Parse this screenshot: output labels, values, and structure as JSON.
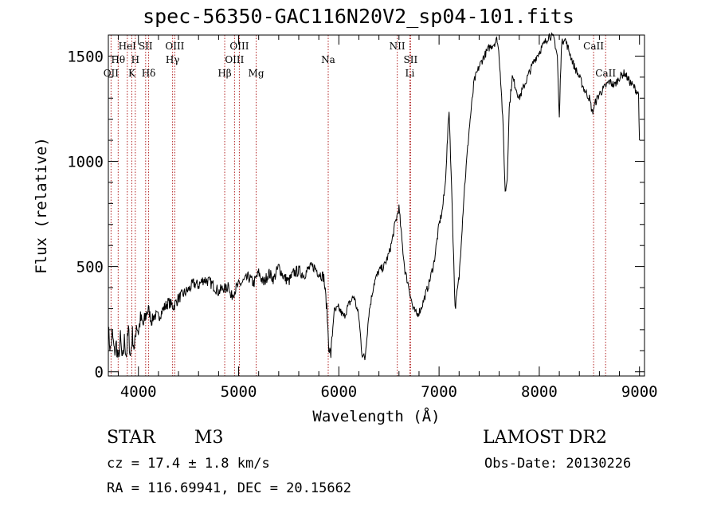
{
  "title": "spec-56350-GAC116N20V2_sp04-101.fits",
  "info": {
    "class_label": "STAR",
    "subclass": "M3",
    "cz": "cz = 17.4 ± 1.8 km/s",
    "radec": "RA = 116.69941, DEC =  20.15662",
    "survey": "LAMOST DR2",
    "obs_date": "Obs-Date: 20130226"
  },
  "chart_data": {
    "type": "line",
    "xlabel": "Wavelength (Å)",
    "ylabel": "Flux (relative)",
    "xlim": [
      3700,
      9050
    ],
    "ylim": [
      -20,
      1600
    ],
    "xticks": [
      4000,
      5000,
      6000,
      7000,
      8000,
      9000
    ],
    "yticks": [
      0,
      500,
      1000,
      1500
    ],
    "line_color": "#000000",
    "marker_color": "#b22222",
    "lines": [
      {
        "name": "OII",
        "x": 3727,
        "row": 3
      },
      {
        "name": "Hθ",
        "x": 3798,
        "row": 2
      },
      {
        "name": "HeI",
        "x": 3889,
        "row": 1
      },
      {
        "name": "K",
        "x": 3934,
        "row": 3
      },
      {
        "name": "H",
        "x": 3969,
        "row": 2
      },
      {
        "name": "SII",
        "x": 4072,
        "row": 1
      },
      {
        "name": "Hδ",
        "x": 4102,
        "row": 3
      },
      {
        "name": "OIII",
        "x": 4363,
        "row": 1
      },
      {
        "name": "Hγ",
        "x": 4341,
        "row": 2
      },
      {
        "name": "Hβ",
        "x": 4861,
        "row": 3
      },
      {
        "name": "OIII",
        "x": 4959,
        "row": 2
      },
      {
        "name": "OIII",
        "x": 5007,
        "row": 1
      },
      {
        "name": "Mg",
        "x": 5175,
        "row": 3
      },
      {
        "name": "Na",
        "x": 5894,
        "row": 2
      },
      {
        "name": "NII",
        "x": 6583,
        "row": 1
      },
      {
        "name": "SII",
        "x": 6716,
        "row": 2
      },
      {
        "name": "Li",
        "x": 6708,
        "row": 3
      },
      {
        "name": "CaII",
        "x": 8542,
        "row": 1
      },
      {
        "name": "CaII",
        "x": 8662,
        "row": 3
      }
    ],
    "series": [
      {
        "x": [
          3700,
          3720,
          3740,
          3760,
          3780,
          3800,
          3820,
          3840,
          3860,
          3880,
          3900,
          3920,
          3940,
          3960,
          3980,
          4000,
          4020,
          4050,
          4080,
          4100,
          4130,
          4160,
          4200,
          4250,
          4300,
          4350,
          4400,
          4450,
          4500,
          4550,
          4600,
          4650,
          4700,
          4750,
          4800,
          4850,
          4880,
          4900,
          4920,
          4950,
          4980,
          5000,
          5050,
          5100,
          5150,
          5200,
          5250,
          5300,
          5350,
          5400,
          5450,
          5500,
          5550,
          5600,
          5650,
          5700,
          5750,
          5800,
          5850,
          5880,
          5900,
          5920,
          5950,
          6000,
          6050,
          6100,
          6150,
          6200,
          6230,
          6260,
          6300,
          6350,
          6400,
          6450,
          6500,
          6530,
          6560,
          6600,
          6630,
          6660,
          6700,
          6740,
          6780,
          6820,
          6860,
          6900,
          6950,
          7000,
          7030,
          7060,
          7100,
          7130,
          7160,
          7200,
          7250,
          7300,
          7350,
          7400,
          7450,
          7500,
          7550,
          7580,
          7600,
          7620,
          7640,
          7660,
          7680,
          7700,
          7730,
          7760,
          7800,
          7850,
          7900,
          7950,
          8000,
          8050,
          8100,
          8150,
          8180,
          8200,
          8220,
          8250,
          8300,
          8350,
          8400,
          8450,
          8500,
          8530,
          8560,
          8600,
          8650,
          8700,
          8750,
          8800,
          8850,
          8900,
          8950,
          8990,
          9000
        ],
        "y": [
          200,
          100,
          180,
          90,
          130,
          50,
          160,
          40,
          150,
          80,
          200,
          70,
          180,
          100,
          230,
          190,
          250,
          220,
          280,
          300,
          240,
          270,
          260,
          300,
          330,
          310,
          350,
          370,
          390,
          420,
          410,
          440,
          430,
          410,
          380,
          400,
          390,
          430,
          350,
          380,
          400,
          410,
          430,
          450,
          420,
          470,
          420,
          470,
          440,
          500,
          450,
          430,
          470,
          480,
          460,
          490,
          500,
          470,
          450,
          300,
          120,
          80,
          280,
          300,
          260,
          320,
          360,
          260,
          90,
          60,
          280,
          420,
          480,
          500,
          560,
          620,
          700,
          780,
          620,
          480,
          400,
          300,
          270,
          300,
          360,
          420,
          520,
          700,
          760,
          880,
          1250,
          800,
          300,
          450,
          850,
          1150,
          1380,
          1450,
          1500,
          1540,
          1560,
          1580,
          1500,
          1350,
          1150,
          850,
          920,
          1250,
          1400,
          1360,
          1300,
          1360,
          1420,
          1480,
          1520,
          1560,
          1600,
          1580,
          1500,
          1200,
          1550,
          1590,
          1520,
          1450,
          1400,
          1340,
          1300,
          1230,
          1280,
          1320,
          1350,
          1380,
          1360,
          1400,
          1420,
          1380,
          1350,
          1320,
          1100
        ]
      }
    ]
  }
}
